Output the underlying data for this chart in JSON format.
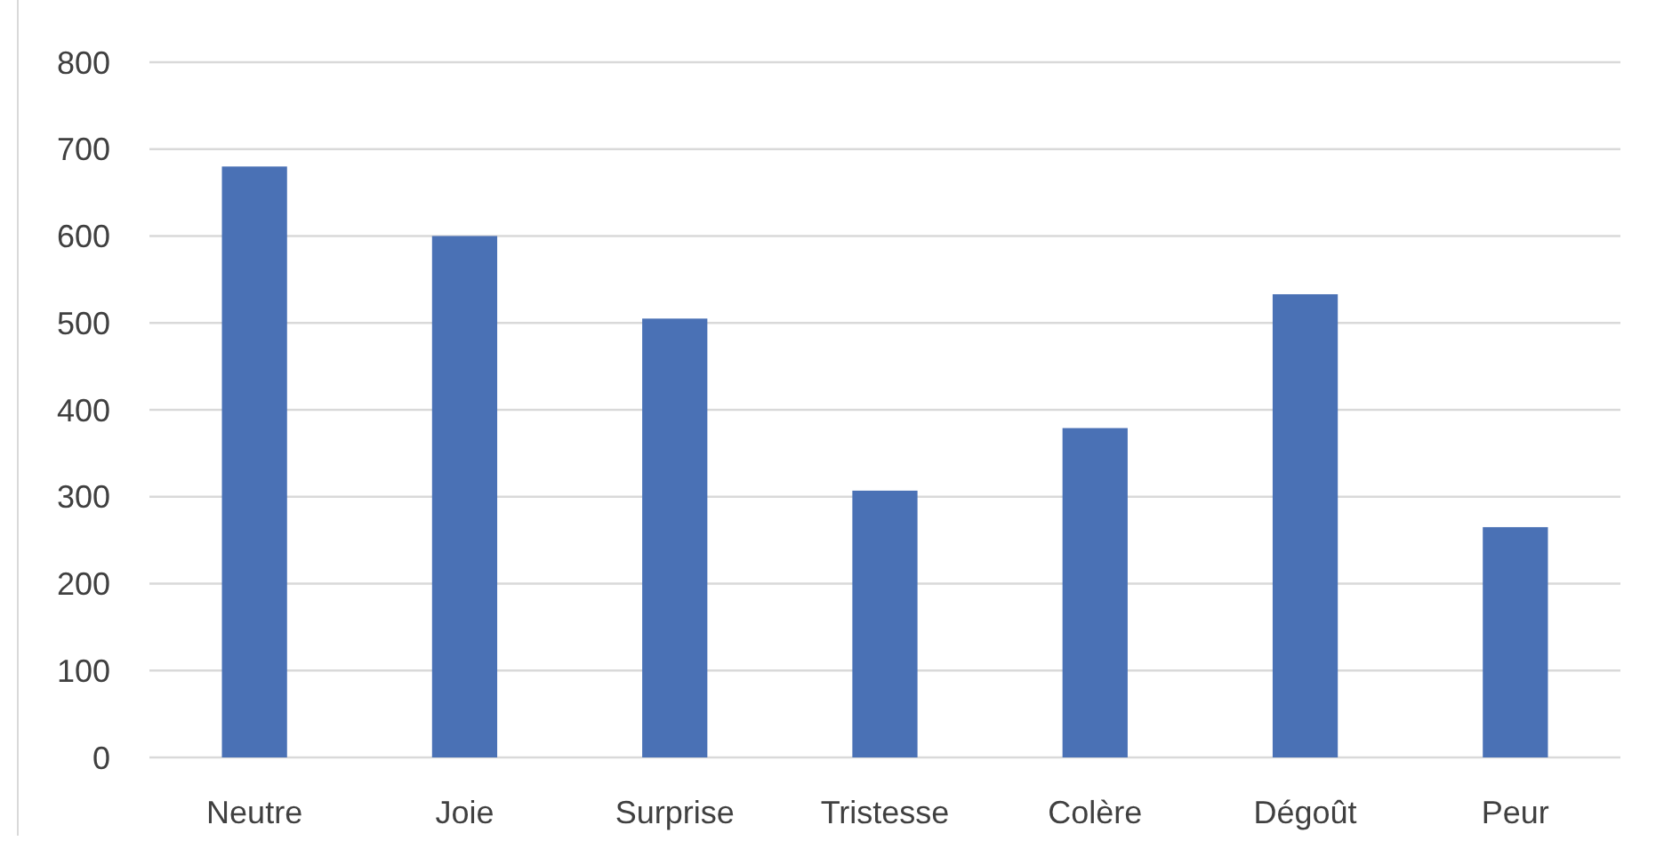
{
  "chart_data": {
    "type": "bar",
    "categories": [
      "Neutre",
      "Joie",
      "Surprise",
      "Tristesse",
      "Colère",
      "Dégoût",
      "Peur"
    ],
    "values": [
      680,
      600,
      505,
      307,
      379,
      533,
      265
    ],
    "color": "#4a71b5",
    "ylim": [
      0,
      800
    ],
    "yticks": [
      0,
      100,
      200,
      300,
      400,
      500,
      600,
      700,
      800
    ],
    "grid": "y"
  }
}
